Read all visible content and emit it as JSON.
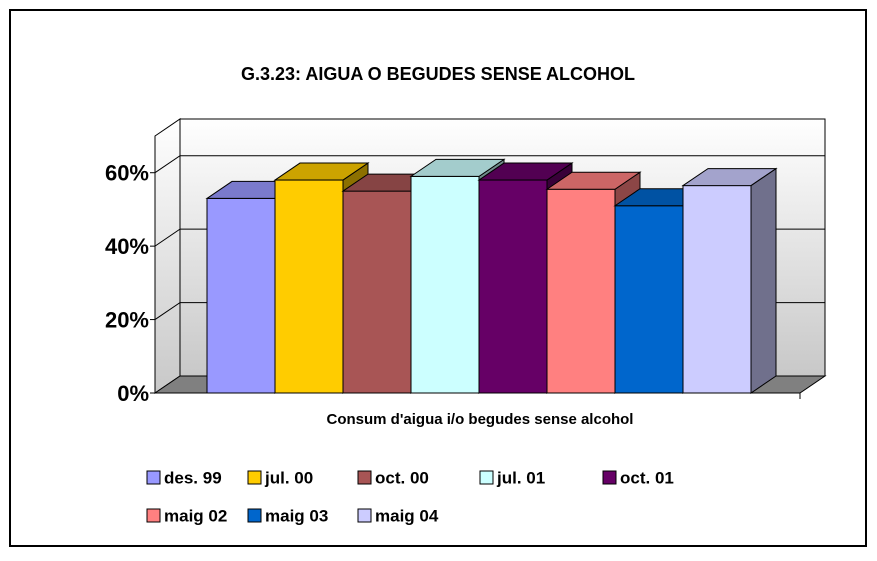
{
  "chart_data": {
    "type": "bar3d",
    "title": "G.3.23: AIGUA O BEGUDES SENSE ALCOHOL",
    "x_label": "Consum d'aigua i/o begudes sense alcohol",
    "ylim": [
      0,
      70
    ],
    "yticks": [
      {
        "value": 0,
        "label": "0%"
      },
      {
        "value": 20,
        "label": "20%"
      },
      {
        "value": 40,
        "label": "40%"
      },
      {
        "value": 60,
        "label": "60%"
      }
    ],
    "grid": true,
    "series": [
      {
        "name": "des. 99",
        "color": "#9999ff",
        "values": [
          53
        ]
      },
      {
        "name": "jul. 00",
        "color": "#ffcc00",
        "values": [
          58
        ]
      },
      {
        "name": "oct. 00",
        "color": "#a85555",
        "values": [
          55
        ]
      },
      {
        "name": "jul. 01",
        "color": "#ccffff",
        "values": [
          59
        ]
      },
      {
        "name": "oct. 01",
        "color": "#660066",
        "values": [
          58
        ]
      },
      {
        "name": "maig 02",
        "color": "#ff8080",
        "values": [
          55.5
        ]
      },
      {
        "name": "maig 03",
        "color": "#0066cc",
        "values": [
          51
        ]
      },
      {
        "name": "maig 04",
        "color": "#ccccff",
        "values": [
          56.5
        ]
      }
    ]
  }
}
